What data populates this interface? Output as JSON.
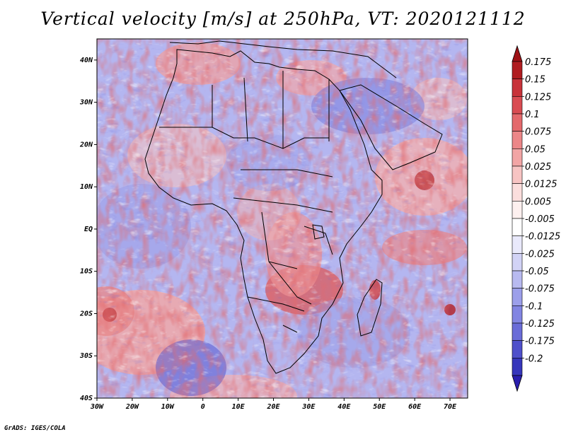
{
  "title": "Vertical velocity [m/s] at 250hPa, VT: 2020121112",
  "footer": "GrADS: IGES/COLA",
  "map": {
    "lon_range": [
      -30,
      75
    ],
    "lat_range": [
      -40,
      45
    ],
    "lat_ticks": [
      {
        "value": 40,
        "label": "40N"
      },
      {
        "value": 30,
        "label": "30N"
      },
      {
        "value": 20,
        "label": "20N"
      },
      {
        "value": 10,
        "label": "10N"
      },
      {
        "value": 0,
        "label": "EQ"
      },
      {
        "value": -10,
        "label": "10S"
      },
      {
        "value": -20,
        "label": "20S"
      },
      {
        "value": -30,
        "label": "30S"
      },
      {
        "value": -40,
        "label": "40S"
      }
    ],
    "lon_ticks": [
      {
        "value": -30,
        "label": "30W"
      },
      {
        "value": -20,
        "label": "20W"
      },
      {
        "value": -10,
        "label": "10W"
      },
      {
        "value": 0,
        "label": "0"
      },
      {
        "value": 10,
        "label": "10E"
      },
      {
        "value": 20,
        "label": "20E"
      },
      {
        "value": 30,
        "label": "30E"
      },
      {
        "value": 40,
        "label": "40E"
      },
      {
        "value": 50,
        "label": "50E"
      },
      {
        "value": 60,
        "label": "60E"
      },
      {
        "value": 70,
        "label": "70E"
      }
    ]
  },
  "colorbar": {
    "levels": [
      {
        "label": "0.175",
        "color": "#b01c20"
      },
      {
        "label": "0.15",
        "color": "#c8333a"
      },
      {
        "label": "0.125",
        "color": "#d94c52"
      },
      {
        "label": "0.1",
        "color": "#e4696c"
      },
      {
        "label": "0.075",
        "color": "#ec8688"
      },
      {
        "label": "0.05",
        "color": "#f2a5a5"
      },
      {
        "label": "0.025",
        "color": "#f7c4c3"
      },
      {
        "label": "0.0125",
        "color": "#fbdedd"
      },
      {
        "label": "0.005",
        "color": "#fdf0ef"
      },
      {
        "label": "-0.005",
        "color": "#ffffff"
      },
      {
        "label": "-0.0125",
        "color": "#e9e9fb"
      },
      {
        "label": "-0.025",
        "color": "#d2d3f6"
      },
      {
        "label": "-0.05",
        "color": "#b8baf0"
      },
      {
        "label": "-0.075",
        "color": "#9c9fea"
      },
      {
        "label": "-0.1",
        "color": "#8285e2"
      },
      {
        "label": "-0.125",
        "color": "#6a6cd8"
      },
      {
        "label": "-0.175",
        "color": "#4f50cb"
      },
      {
        "label": "-0.2",
        "color": "#3636bb"
      }
    ],
    "top_arrow_color": "#9e1115",
    "bottom_arrow_color": "#2a1eae"
  }
}
